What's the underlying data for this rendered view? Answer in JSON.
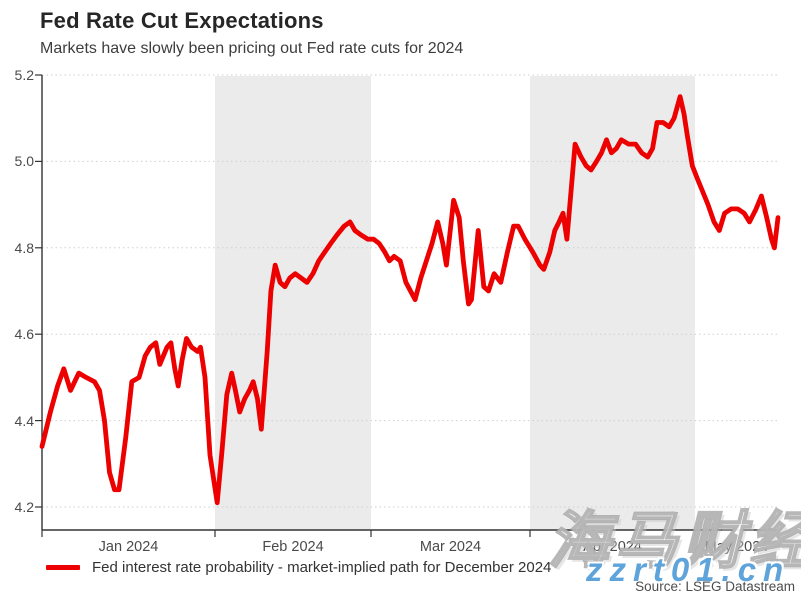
{
  "chart": {
    "title": "Fed Rate Cut Expectations",
    "subtitle": "Markets have slowly been pricing out Fed rate cuts for 2024",
    "legend": "Fed interest rate probability - market-implied path for December 2024",
    "source": "Source: LSEG Datastream",
    "line_color": "#ec0000",
    "band_color": "#ebebeb"
  },
  "watermarks": {
    "cjk": "海马财经",
    "url": "zzrt01.cn"
  },
  "chart_data": {
    "type": "line",
    "title": "Fed Rate Cut Expectations",
    "subtitle": "Markets have slowly been pricing out Fed rate cuts for 2024",
    "legend_position": "bottom-left",
    "grid": "horizontal-dotted",
    "x_axis": {
      "unit": "days since 2024-01-01",
      "tick_labels": [
        "Jan 2024",
        "Feb 2024",
        "Mar 2024",
        "Apr 2024",
        "May 2024"
      ],
      "month_start_days": [
        0,
        31,
        60,
        91,
        121
      ],
      "end_day": 135,
      "shaded_bands_days": [
        [
          31,
          60
        ],
        [
          91,
          121
        ]
      ]
    },
    "y_axis": {
      "min": 4.2,
      "max": 5.2,
      "tick_values": [
        5.2,
        5.0,
        4.8,
        4.6,
        4.4,
        4.2
      ],
      "tick_labels": [
        "5.2",
        "5.0",
        "4.8",
        "4.6",
        "4.4",
        "4.2"
      ]
    },
    "series": [
      {
        "name": "Fed interest rate probability - market-implied path for December 2024",
        "color": "#ec0000",
        "points": [
          [
            0,
            4.34
          ],
          [
            1.5,
            4.42
          ],
          [
            2.8,
            4.48
          ],
          [
            3.9,
            4.52
          ],
          [
            5.1,
            4.47
          ],
          [
            6.6,
            4.51
          ],
          [
            7.9,
            4.5
          ],
          [
            9.4,
            4.49
          ],
          [
            10.3,
            4.47
          ],
          [
            11.2,
            4.4
          ],
          [
            12.1,
            4.28
          ],
          [
            13,
            4.24
          ],
          [
            13.8,
            4.24
          ],
          [
            15,
            4.36
          ],
          [
            16.1,
            4.49
          ],
          [
            17.4,
            4.5
          ],
          [
            18.5,
            4.55
          ],
          [
            19.4,
            4.57
          ],
          [
            20.4,
            4.58
          ],
          [
            21.1,
            4.53
          ],
          [
            22.4,
            4.57
          ],
          [
            23.1,
            4.58
          ],
          [
            23.8,
            4.52
          ],
          [
            24.4,
            4.48
          ],
          [
            25.1,
            4.54
          ],
          [
            25.9,
            4.59
          ],
          [
            26.8,
            4.57
          ],
          [
            27.9,
            4.56
          ],
          [
            28.4,
            4.57
          ],
          [
            29.2,
            4.5
          ],
          [
            30.1,
            4.32
          ],
          [
            31.4,
            4.21
          ],
          [
            32.3,
            4.33
          ],
          [
            33.2,
            4.46
          ],
          [
            34.1,
            4.51
          ],
          [
            34.8,
            4.47
          ],
          [
            35.6,
            4.42
          ],
          [
            36.5,
            4.45
          ],
          [
            37.4,
            4.47
          ],
          [
            38.1,
            4.49
          ],
          [
            38.9,
            4.45
          ],
          [
            39.6,
            4.38
          ],
          [
            40.7,
            4.56
          ],
          [
            41.4,
            4.7
          ],
          [
            42.2,
            4.76
          ],
          [
            43.1,
            4.72
          ],
          [
            44,
            4.71
          ],
          [
            44.9,
            4.73
          ],
          [
            45.9,
            4.74
          ],
          [
            47,
            4.73
          ],
          [
            48.1,
            4.72
          ],
          [
            49.2,
            4.74
          ],
          [
            50.3,
            4.77
          ],
          [
            51.4,
            4.79
          ],
          [
            52.5,
            4.81
          ],
          [
            53.7,
            4.83
          ],
          [
            55,
            4.85
          ],
          [
            56.1,
            4.86
          ],
          [
            57,
            4.84
          ],
          [
            58.1,
            4.83
          ],
          [
            59.4,
            4.82
          ],
          [
            60.5,
            4.82
          ],
          [
            61.6,
            4.81
          ],
          [
            62.7,
            4.79
          ],
          [
            63.6,
            4.77
          ],
          [
            64.5,
            4.78
          ],
          [
            65.7,
            4.77
          ],
          [
            66.8,
            4.72
          ],
          [
            67.7,
            4.7
          ],
          [
            68.6,
            4.68
          ],
          [
            69.7,
            4.73
          ],
          [
            70.8,
            4.77
          ],
          [
            71.9,
            4.81
          ],
          [
            73,
            4.86
          ],
          [
            74,
            4.81
          ],
          [
            74.7,
            4.76
          ],
          [
            76.1,
            4.91
          ],
          [
            77.2,
            4.87
          ],
          [
            78,
            4.77
          ],
          [
            79,
            4.67
          ],
          [
            79.6,
            4.68
          ],
          [
            80.9,
            4.84
          ],
          [
            82,
            4.71
          ],
          [
            82.9,
            4.7
          ],
          [
            84,
            4.74
          ],
          [
            85.3,
            4.72
          ],
          [
            86.6,
            4.79
          ],
          [
            87.8,
            4.85
          ],
          [
            88.7,
            4.85
          ],
          [
            90,
            4.82
          ],
          [
            91.5,
            4.79
          ],
          [
            92.8,
            4.76
          ],
          [
            93.5,
            4.75
          ],
          [
            94.6,
            4.79
          ],
          [
            95.5,
            4.84
          ],
          [
            96.3,
            4.86
          ],
          [
            97,
            4.88
          ],
          [
            97.7,
            4.82
          ],
          [
            99.2,
            5.04
          ],
          [
            100.3,
            5.01
          ],
          [
            101.2,
            4.99
          ],
          [
            102.1,
            4.98
          ],
          [
            103.1,
            5.0
          ],
          [
            104,
            5.02
          ],
          [
            104.9,
            5.05
          ],
          [
            105.8,
            5.02
          ],
          [
            106.7,
            5.03
          ],
          [
            107.6,
            5.05
          ],
          [
            108.9,
            5.04
          ],
          [
            110.2,
            5.04
          ],
          [
            111.3,
            5.02
          ],
          [
            112.4,
            5.01
          ],
          [
            113.3,
            5.03
          ],
          [
            114.1,
            5.09
          ],
          [
            115.2,
            5.09
          ],
          [
            116.3,
            5.08
          ],
          [
            117.2,
            5.1
          ],
          [
            118.3,
            5.15
          ],
          [
            119,
            5.11
          ],
          [
            119.6,
            5.06
          ],
          [
            120.5,
            4.99
          ],
          [
            121.4,
            4.96
          ],
          [
            122.3,
            4.93
          ],
          [
            123.2,
            4.9
          ],
          [
            124.2,
            4.86
          ],
          [
            125.1,
            4.84
          ],
          [
            126,
            4.88
          ],
          [
            127.1,
            4.89
          ],
          [
            128.2,
            4.89
          ],
          [
            129.3,
            4.88
          ],
          [
            130.2,
            4.86
          ],
          [
            131.3,
            4.89
          ],
          [
            132.2,
            4.92
          ],
          [
            133.1,
            4.87
          ],
          [
            133.9,
            4.82
          ],
          [
            134.4,
            4.8
          ],
          [
            135,
            4.87
          ]
        ]
      }
    ]
  }
}
